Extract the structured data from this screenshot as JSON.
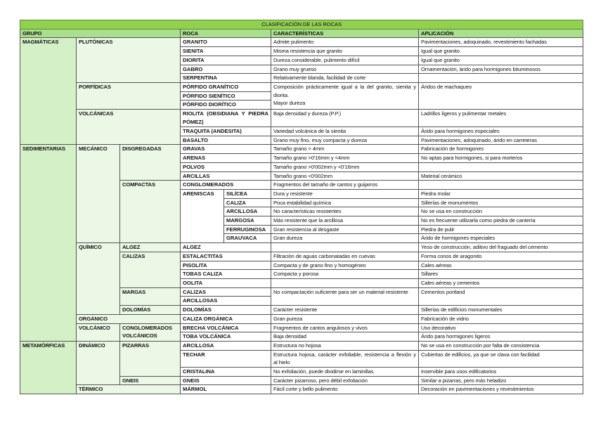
{
  "title": "CLASIFICACIÓN DE LAS ROCAS",
  "headers": {
    "grupo": "GRUPO",
    "roca": "ROCA",
    "caracteristicas": "CARACTERÍSTICAS",
    "aplicacion": "APLICACIÓN"
  },
  "labels": {
    "magmaticas": "MAGMÁTICAS",
    "plutonicas": "PLUTÓNICAS",
    "porfidicas": "PORFÍDICAS",
    "volcanicas": "VOLCÁNICAS",
    "sedimentarias": "SEDIMENTARIAS",
    "mecanico": "MECÁNICO",
    "disgregadas": "DISGREGADAS",
    "compactas": "COMPACTAS",
    "areniscas": "ARENISCAS",
    "quimico": "QUÍMICO",
    "algez": "ALGEZ",
    "calizas": "CALIZAS",
    "margas": "MARGAS",
    "dolomias": "DOLOMÍAS",
    "organico": "ORGÁNICO",
    "volcanico": "VOLCÁNICO",
    "conglomerados_volcanicos": "CONGLOMERADOS VOLCÁNICOS",
    "metamorficas": "METAMÓRFICAS",
    "dinamico": "DINÁMICO",
    "pizarras": "PIZARRAS",
    "gneis": "GNEIS",
    "termico": "TÉRMICO"
  },
  "rows": [
    {
      "roca": "GRANITO",
      "car": "Admite pulimento",
      "apl": "Pavimentaciones, adoquinado, revestimiento fachadas"
    },
    {
      "roca": "SIENITA",
      "car": "Misma resistencia que granito",
      "apl": "Igual que granito"
    },
    {
      "roca": "DIORITA",
      "car": "Dureza considerable, pulimento difícil",
      "apl": "Igual que granito"
    },
    {
      "roca": "GABRO",
      "car": "Grano muy grueso",
      "apl": "Ornamentación, árido para hormigones bituminosos"
    },
    {
      "roca": "SERPENTINA",
      "car": "Relativamente blanda, facilidad de corte",
      "apl": ""
    },
    {
      "roca": "PÓRFIDO GRANÍTICO",
      "car": "Composición prácticamente igual a la del granito, sienita y diorita.",
      "car2": "Mayor dureza",
      "apl": "Áridos de machaqueo"
    },
    {
      "roca": "PÓRFIDO SIENÍTICO"
    },
    {
      "roca": "PÓRFIDO DIORÍTICO"
    },
    {
      "roca": "RIOLITA (OBSIDIANA Y PIEDRA PÓMEZ)",
      "car": "Baja densidad y dureza (P.P.)",
      "apl": "Ladrillos ligeros y pulimentar metales"
    },
    {
      "roca": "TRAQUITA (ANDESITA)",
      "car": "Variedad volcánica de la sienita",
      "apl": "Árido para hormigones especiales"
    },
    {
      "roca": "BASALTO",
      "car": "Grano muy fino, muy compacta y dureza",
      "apl": "Pavimentaciones, adoquinado, árido en carreteras"
    },
    {
      "roca": "GRAVAS",
      "car": "Tamaño grano > 4mm",
      "apl": "Fabricación de hormigones"
    },
    {
      "roca": "ARENAS",
      "car": "Tamaño grano >0'16mm y <4mm",
      "apl": "No aptas para hormigones, si para morteros"
    },
    {
      "roca": "POLVOS",
      "car": "Tamaño grano >0'002mm y <0'16mm",
      "apl": ""
    },
    {
      "roca": "ARCILLAS",
      "car": "Tamaño grano <0'002mm",
      "apl": "Material cerámico"
    },
    {
      "roca": "CONGLOMERADOS",
      "car": "Fragmentos del tamaño de cantos y guijarros",
      "apl": ""
    },
    {
      "roca": "SILÍCEA",
      "car": "Dura y resistente",
      "apl": "Piedra molar"
    },
    {
      "roca": "CALIZA",
      "car": "Poca estabilidad química",
      "apl": "Sillerías de monumentos"
    },
    {
      "roca": "ARCILLOSA",
      "car": "No características resistentes",
      "apl": "No se usa en construcción"
    },
    {
      "roca": "MARGOSA",
      "car": "Más resistente que la arcillosa",
      "apl": "No es frecuente utilizarla como piedra de cantería"
    },
    {
      "roca": "FERRUGINOSA",
      "car": "Gran resistencia al desgaste",
      "apl": "Piedra de pulir"
    },
    {
      "roca": "GRAUVACA",
      "car": "Gran dureza",
      "apl": "Árido de hormigones especiales"
    },
    {
      "roca": "ALGEZ",
      "car": "",
      "apl": "Yeso de construcción, aditivo del fraguado del cemento"
    },
    {
      "roca": "ESTALACTITAS",
      "car": "Filtración de aguas carbonatadas en cuevas",
      "apl": "Forma conos de aragonito"
    },
    {
      "roca": "PISOLITA",
      "car": "Compacta y de grano fino y homogéneo",
      "apl": "Cales aéreas"
    },
    {
      "roca": "TOBAS CALIZA",
      "car": "Compacta y porosa",
      "apl": "Sillares"
    },
    {
      "roca": "OOLITA",
      "car": "",
      "apl": "Cales aéreas y cementos"
    },
    {
      "roca": "CALIZAS",
      "car": "No compactación suficiente para ser un material resistente",
      "apl": "Cementos portland"
    },
    {
      "roca": "ARCILLOSAS"
    },
    {
      "roca": "DOLOMÍAS",
      "car": "Carácter resistente",
      "apl": "Sillerías de edificios monumentales"
    },
    {
      "roca": "CALIZA ORGÁNICA",
      "car": "Gran pureza",
      "apl": "Fabricación de vidrio"
    },
    {
      "roca": "BRECHA VOLCÁNICA",
      "car": "Fragmentos de cantos angulosos y vivos",
      "apl": "Uso decorativo"
    },
    {
      "roca": "TOBA VOLCÁNICA",
      "car": "Baja densidad",
      "apl": "Árido para hormigones ligeros"
    },
    {
      "roca": "ARCILLOSA",
      "car": "Estructura no hojosa",
      "apl": "No se usa en construcción por falta de consistencia"
    },
    {
      "roca": "TECHAR",
      "car": "Estructura hojosa, carácter exfoliable, resistencia a flexión y al hielo",
      "apl": "Cubiertas de edificios, ya que se clava con facilidad"
    },
    {
      "roca": "CRISTALINA",
      "car": "No exfoliación, puede dividirse en laminillas",
      "apl": "Inservible para usos edificatorios"
    },
    {
      "roca": "GNEIS",
      "car": "Carácter pizarroso, pero débil exfoliación",
      "apl": "Similar a pizarras, pero más heladizo"
    },
    {
      "roca": "MÁRMOL",
      "car": "Fácil corte y bello pulimento",
      "apl": "Decoración en pavimentaciones y revestimientos"
    }
  ]
}
